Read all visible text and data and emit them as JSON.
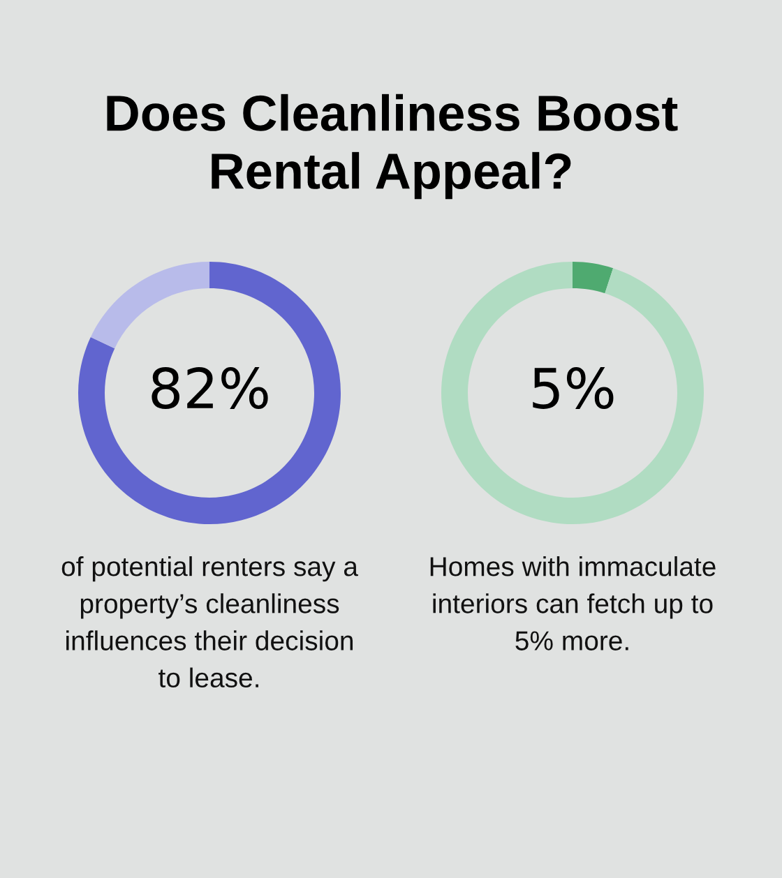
{
  "chart_data": [
    {
      "type": "donut",
      "title": "Does Cleanliness Boost Rental Appeal?",
      "categories": [
        null,
        null
      ],
      "values": [
        82,
        18
      ],
      "colors": [
        "#6165cf",
        "#b8bbea"
      ],
      "value_labels": [
        "82%",
        null
      ],
      "annotations": [
        "of potential renters say a property’s cleanliness influences their decision to lease."
      ]
    },
    {
      "type": "donut",
      "categories": [
        null,
        null
      ],
      "values": [
        5,
        95
      ],
      "colors": [
        "#4faa70",
        "#b0dcc2"
      ],
      "value_labels": [
        "5%",
        null
      ],
      "annotations": [
        "Homes with immaculate interiors can fetch up to 5% more."
      ]
    }
  ]
}
